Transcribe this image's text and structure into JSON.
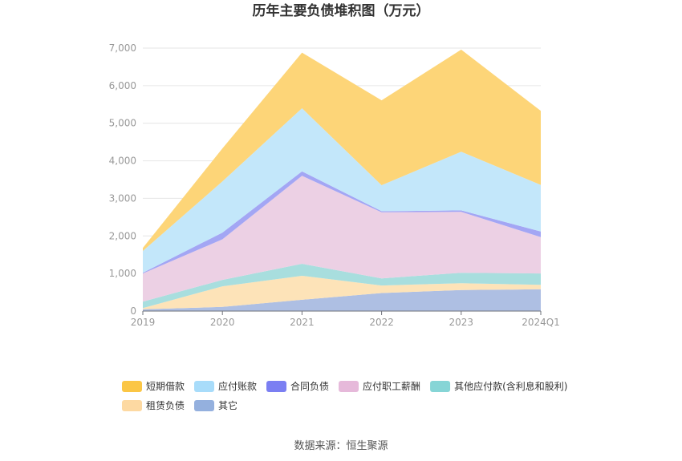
{
  "chart_data": {
    "type": "area",
    "stacked": true,
    "title": "历年主要负债堆积图（万元）",
    "categories": [
      "2019",
      "2020",
      "2021",
      "2022",
      "2023",
      "2024Q1"
    ],
    "ylim": [
      0,
      7000
    ],
    "yticks": [
      0,
      1000,
      2000,
      3000,
      4000,
      5000,
      6000,
      7000
    ],
    "ytick_labels": [
      "0",
      "1,000",
      "2,000",
      "3,000",
      "4,000",
      "5,000",
      "6,000",
      "7,000"
    ],
    "grid": true,
    "legend_position": "bottom",
    "series": [
      {
        "name": "其它",
        "color": "#aebfe3",
        "values": [
          50,
          110,
          300,
          480,
          560,
          580
        ]
      },
      {
        "name": "租赁负债",
        "color": "#fde3b8",
        "values": [
          30,
          550,
          640,
          200,
          180,
          120
        ]
      },
      {
        "name": "其他应付款(含利息和股利)",
        "color": "#a8dede",
        "values": [
          170,
          170,
          320,
          190,
          280,
          300
        ]
      },
      {
        "name": "应付职工薪酬",
        "color": "#ecd0e4",
        "values": [
          750,
          1080,
          2340,
          1760,
          1620,
          970
        ]
      },
      {
        "name": "合同负债",
        "color": "#a3a6f4",
        "values": [
          20,
          180,
          120,
          30,
          40,
          150
        ]
      },
      {
        "name": "应付账款",
        "color": "#c3e7fa",
        "values": [
          580,
          1360,
          1680,
          690,
          1560,
          1240
        ]
      },
      {
        "name": "短期借款",
        "color": "#fdd578",
        "values": [
          80,
          880,
          1480,
          2260,
          2720,
          1970
        ]
      }
    ],
    "legend": [
      {
        "name": "短期借款",
        "color": "#fbc645"
      },
      {
        "name": "应付账款",
        "color": "#a8dcfa"
      },
      {
        "name": "合同负债",
        "color": "#7b7ff2"
      },
      {
        "name": "应付职工薪酬",
        "color": "#e6b9da"
      },
      {
        "name": "其他应付款(含利息和股利)",
        "color": "#86d5d6"
      },
      {
        "name": "租赁负债",
        "color": "#fdd9a2"
      },
      {
        "name": "其它",
        "color": "#94b0de"
      }
    ]
  },
  "source": "数据来源：恒生聚源"
}
